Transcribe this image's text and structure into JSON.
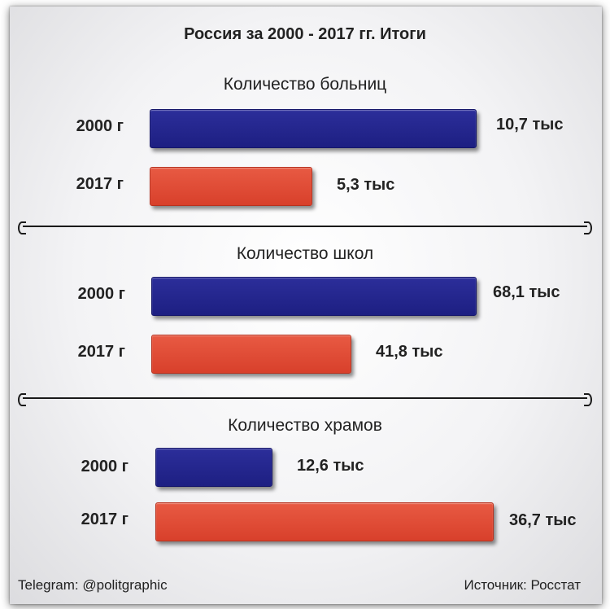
{
  "chart_data": {
    "type": "bar",
    "title": "Россия за 2000 - 2017 гг. Итоги",
    "groups": [
      {
        "title": "Количество больниц",
        "categories": [
          "2000 г",
          "2017 г"
        ],
        "values": [
          10.7,
          5.3
        ],
        "labels": [
          "10,7 тыс",
          "5,3 тыс"
        ]
      },
      {
        "title": "Количество школ",
        "categories": [
          "2000 г",
          "2017 г"
        ],
        "values": [
          68.1,
          41.8
        ],
        "labels": [
          "68,1 тыс",
          "41,8 тыс"
        ]
      },
      {
        "title": "Количество храмов",
        "categories": [
          "2000 г",
          "2017 г"
        ],
        "values": [
          12.6,
          36.7
        ],
        "labels": [
          "12,6 тыс",
          "36,7 тыс"
        ]
      }
    ],
    "colors": {
      "2000": "#22248c",
      "2017": "#df4a33"
    },
    "grid": false,
    "legend": "none"
  },
  "footer": {
    "left": "Telegram: @politgraphic",
    "right": "Источник: Росстат"
  }
}
